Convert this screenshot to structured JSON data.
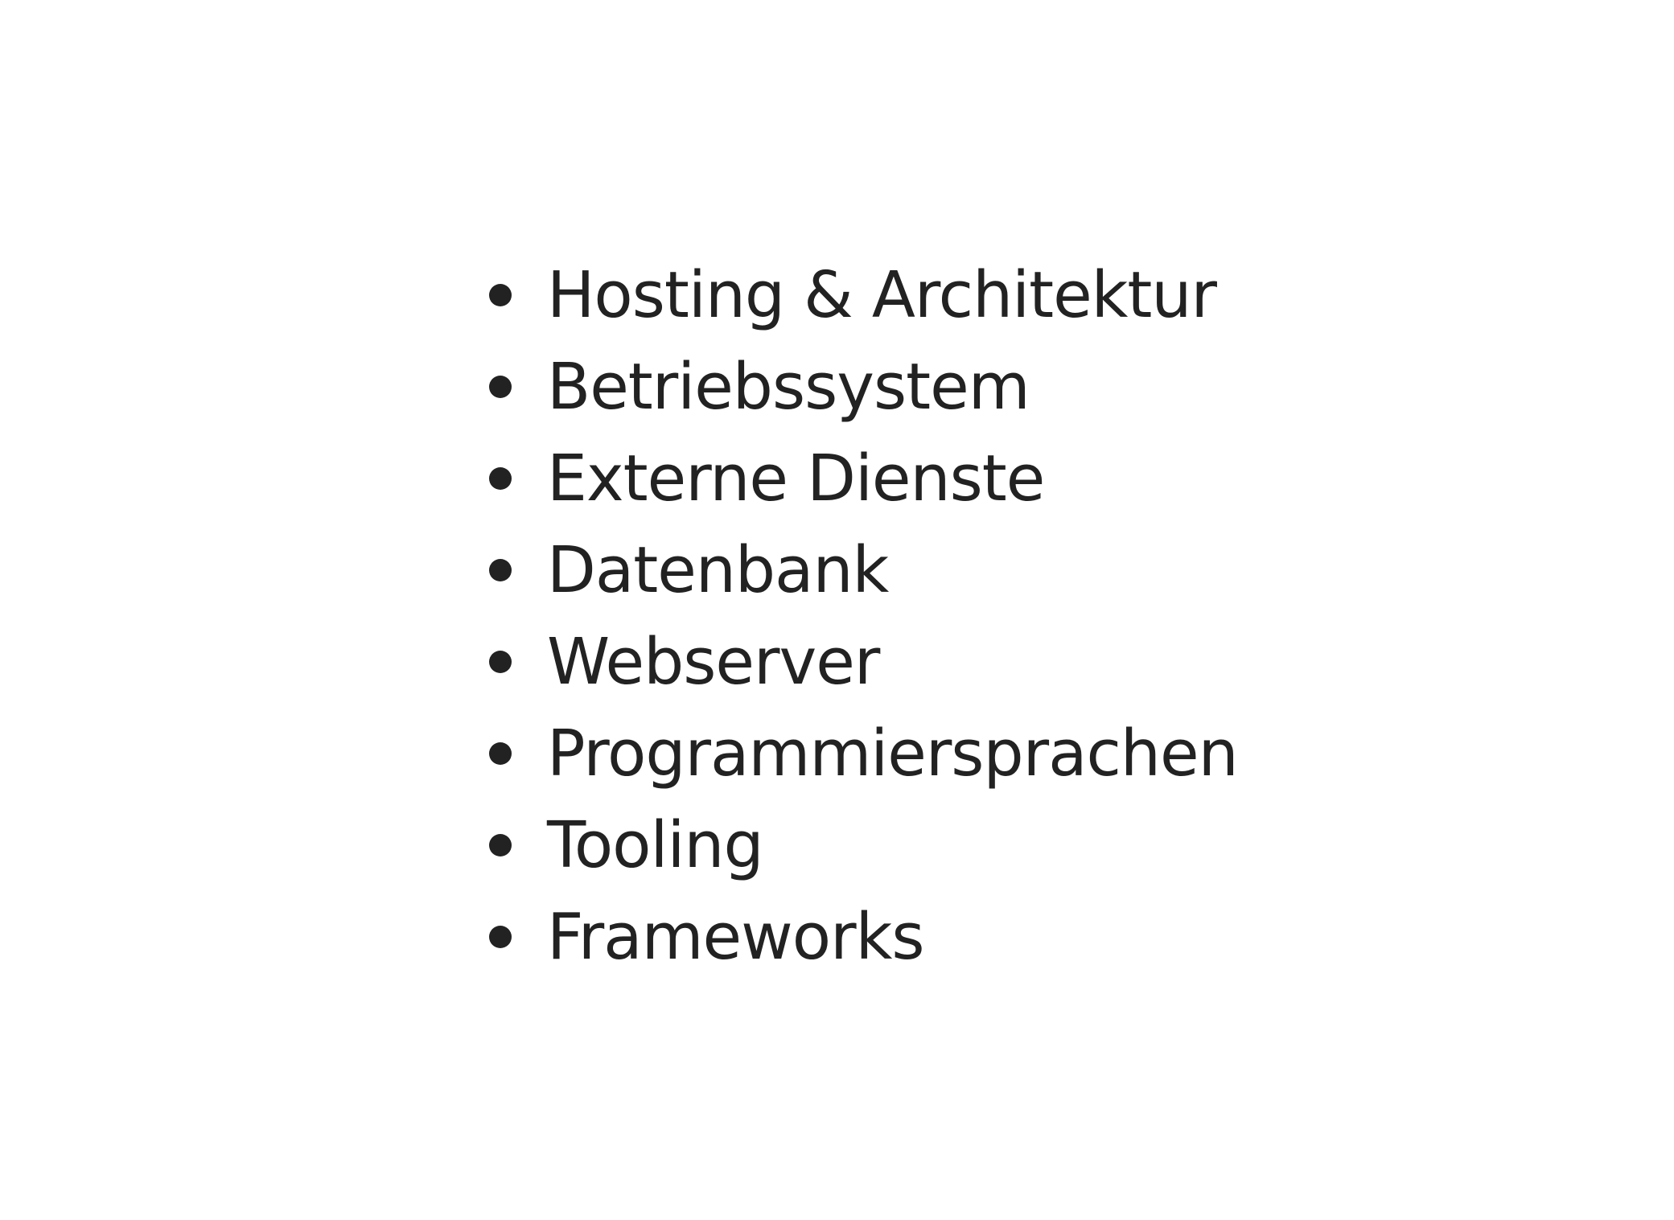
{
  "list": {
    "items": [
      "Hosting & Architektur",
      "Betriebssystem",
      "Externe Dienste",
      "Datenbank",
      "Webserver",
      "Programmiersprachen",
      "Tooling",
      "Frameworks"
    ]
  }
}
